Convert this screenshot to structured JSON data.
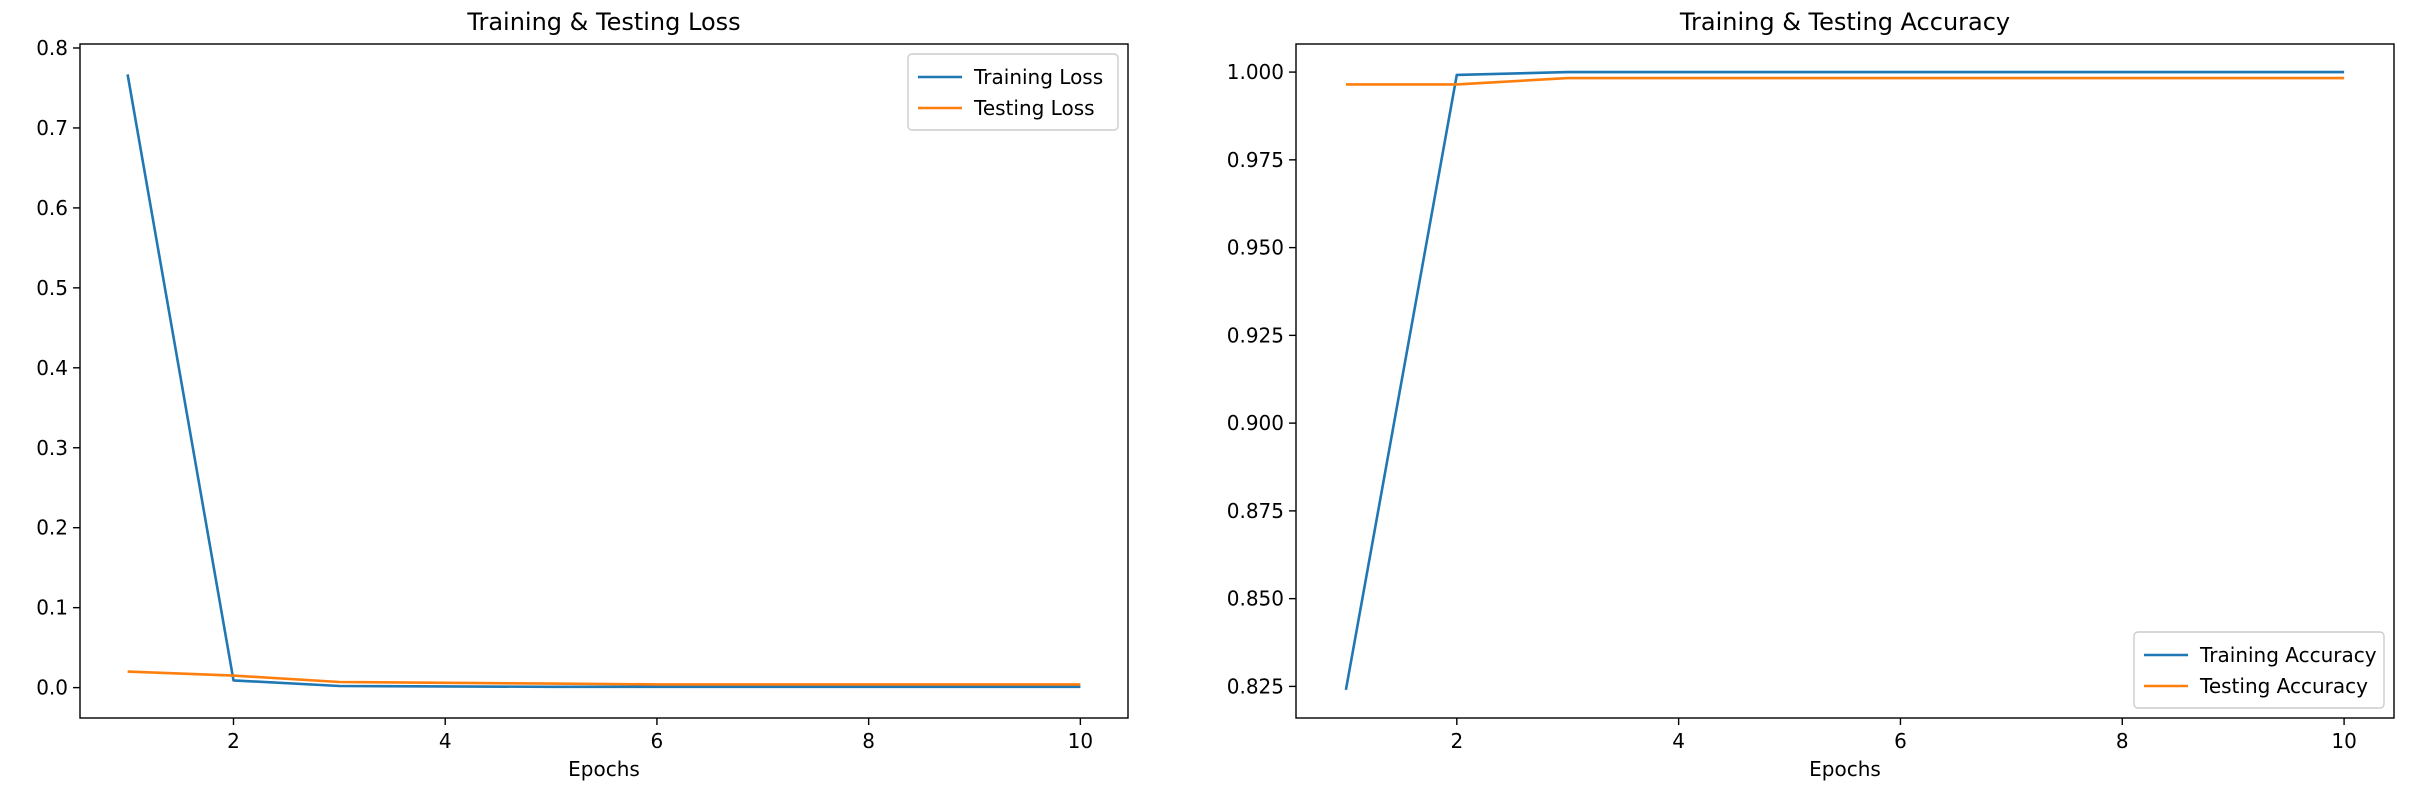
{
  "chart_data": [
    {
      "type": "line",
      "title": "Training & Testing Loss",
      "xlabel": "Epochs",
      "ylabel": "",
      "xlim": [
        0.55,
        10.45
      ],
      "ylim": [
        -0.038,
        0.805
      ],
      "xticks": [
        2,
        4,
        6,
        8,
        10
      ],
      "yticks": [
        0.0,
        0.1,
        0.2,
        0.3,
        0.4,
        0.5,
        0.6,
        0.7,
        0.8
      ],
      "ytick_format": 1,
      "legend": "upper right",
      "grid": false,
      "x": [
        1,
        2,
        3,
        4,
        5,
        6,
        7,
        8,
        9,
        10
      ],
      "series": [
        {
          "name": "Training Loss",
          "color": "#1f77b4",
          "values": [
            0.767,
            0.009,
            0.002,
            0.0015,
            0.001,
            0.001,
            0.001,
            0.001,
            0.001,
            0.001
          ]
        },
        {
          "name": "Testing Loss",
          "color": "#ff7f0e",
          "values": [
            0.02,
            0.015,
            0.007,
            0.006,
            0.005,
            0.004,
            0.004,
            0.004,
            0.004,
            0.004
          ]
        }
      ]
    },
    {
      "type": "line",
      "title": "Training & Testing Accuracy",
      "xlabel": "Epochs",
      "ylabel": "",
      "xlim": [
        0.55,
        10.45
      ],
      "ylim": [
        0.816,
        1.008
      ],
      "xticks": [
        2,
        4,
        6,
        8,
        10
      ],
      "yticks": [
        0.825,
        0.85,
        0.875,
        0.9,
        0.925,
        0.95,
        0.975,
        1.0
      ],
      "ytick_format": 3,
      "legend": "lower right",
      "grid": false,
      "x": [
        1,
        2,
        3,
        4,
        5,
        6,
        7,
        8,
        9,
        10
      ],
      "series": [
        {
          "name": "Training Accuracy",
          "color": "#1f77b4",
          "values": [
            0.824,
            0.9992,
            1.0,
            1.0,
            1.0,
            1.0,
            1.0,
            1.0,
            1.0,
            1.0
          ]
        },
        {
          "name": "Testing Accuracy",
          "color": "#ff7f0e",
          "values": [
            0.9965,
            0.9965,
            0.9983,
            0.9983,
            0.9983,
            0.9983,
            0.9983,
            0.9983,
            0.9983,
            0.9983
          ]
        }
      ]
    }
  ]
}
